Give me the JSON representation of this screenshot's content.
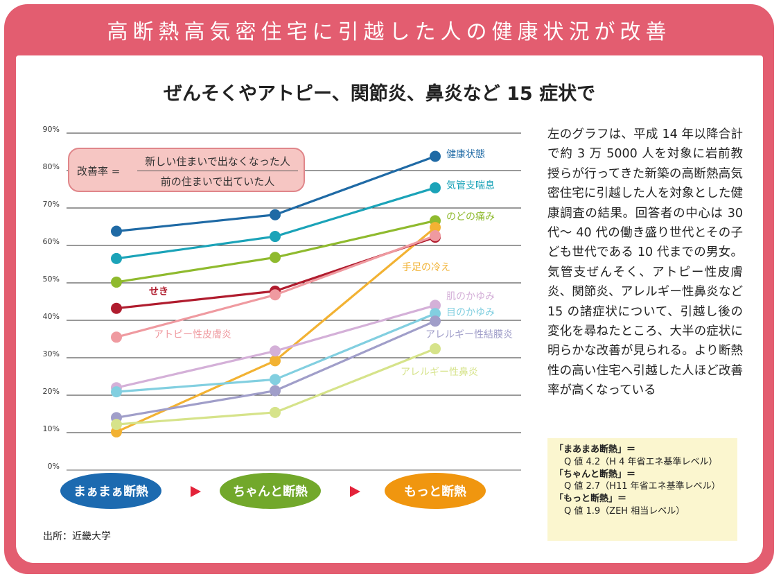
{
  "banner": {
    "title": "高断熱高気密住宅に引越した人の健康状況が改善"
  },
  "subtitle": "ぜんそくやアトピー、関節炎、鼻炎など 15 症状で",
  "formula": {
    "label": "改善率 =",
    "numerator": "新しい住まいで出なくなった人",
    "denominator": "前の住まいで出ていた人"
  },
  "description": "左のグラフは、平成 14 年以降合計で約 3 万 5000 人を対象に岩前教授らが行ってきた新築の高断熱高気密住宅に引越した人を対象とした健康調査の結果。回答者の中心は 30 代～ 40 代の働き盛り世代とその子ども世代である 10 代までの男女。気管支ぜんそく、アトピー性皮膚炎、関節炎、アレルギー性鼻炎など 15 の諸症状について、引越し後の変化を尋ねたところ、大半の症状に明らかな改善が見られる。より断熱性の高い住宅へ引越した人ほど改善率が高くなっている",
  "notes": [
    {
      "term": "「まあまあ断熱」＝",
      "value": "Q 値 4.2（H 4 年省エネ基準レベル）"
    },
    {
      "term": "「ちゃんと断熱」＝",
      "value": "Q 値 2.7（H11 年省エネ基準レベル）"
    },
    {
      "term": "「もっと断熱」＝",
      "value": "Q 値 1.9（ZEH 相当レベル）"
    }
  ],
  "source": "出所：近畿大学",
  "colors": {
    "frame": "#e35d70",
    "arrow": "#e3233a"
  },
  "chart_data": {
    "type": "line",
    "ylim": [
      0,
      90
    ],
    "yticks": [
      "0%",
      "10%",
      "20%",
      "30%",
      "40%",
      "50%",
      "60%",
      "70%",
      "80%",
      "90%"
    ],
    "grid": true,
    "categories": [
      {
        "label": "まぁまぁ断熱",
        "color": "#1c6ab0"
      },
      {
        "label": "ちゃんと断熱",
        "color": "#72a82b"
      },
      {
        "label": "もっと断熱",
        "color": "#f0960f"
      }
    ],
    "series": [
      {
        "name": "健康状態",
        "color": "#1f6aa5",
        "values": [
          63.8,
          68.2,
          83.8
        ]
      },
      {
        "name": "気管支喘息",
        "color": "#1ba3b8",
        "values": [
          56.5,
          62.4,
          75.4
        ]
      },
      {
        "name": "のどの痛み",
        "color": "#8fba2e",
        "values": [
          50.2,
          56.8,
          66.6
        ]
      },
      {
        "name": "手足の冷え",
        "color": "#f2b233",
        "values": [
          10.2,
          29.2,
          64.8
        ]
      },
      {
        "name": "せき",
        "color": "#b01c2e",
        "values": [
          43.2,
          47.8,
          62.2
        ]
      },
      {
        "name": "アトピー性皮膚炎",
        "color": "#ef9aa0",
        "values": [
          35.5,
          46.8,
          62.6
        ]
      },
      {
        "name": "肌のかゆみ",
        "color": "#d4b0d8",
        "values": [
          22.0,
          31.8,
          44.0
        ]
      },
      {
        "name": "目のかゆみ",
        "color": "#82cfe0",
        "values": [
          20.9,
          24.2,
          41.8
        ]
      },
      {
        "name": "アレルギー性結膜炎",
        "color": "#a09ec9",
        "values": [
          14.0,
          21.2,
          39.8
        ]
      },
      {
        "name": "アレルギー性鼻炎",
        "color": "#d6e38a",
        "values": [
          12.2,
          15.4,
          32.4
        ]
      }
    ]
  }
}
